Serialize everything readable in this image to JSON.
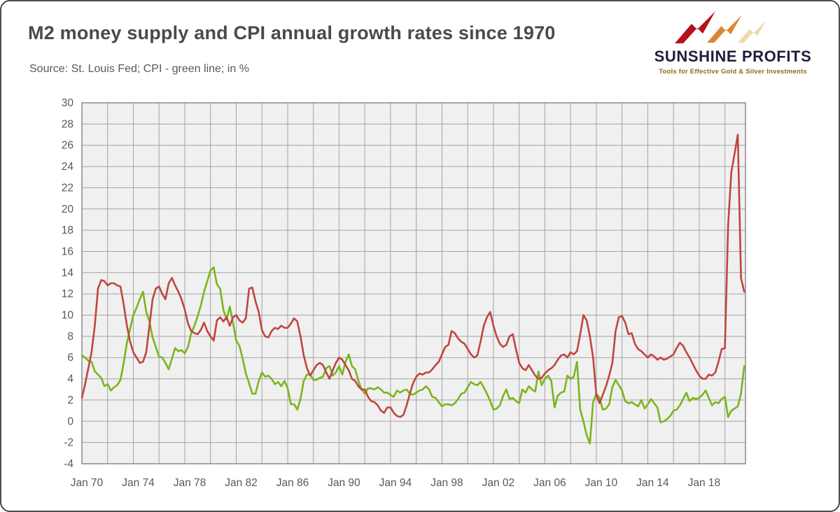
{
  "header": {
    "title": "M2 money supply and CPI annual growth rates since 1970",
    "source_note": "Source: St. Louis Fed; CPI - green line; in %"
  },
  "logo": {
    "brand": "SUNSHINE PROFITS",
    "tagline": "Tools for Effective Gold & Silver Investments"
  },
  "chart_data": {
    "type": "line",
    "title": "M2 money supply and CPI annual growth rates since 1970",
    "subtitle": "Source: St. Louis Fed; CPI - green line; in %",
    "xlabel": "",
    "ylabel": "",
    "unit": "%",
    "x_start": 1970,
    "x_step_years": 0.25,
    "xlim": [
      1970,
      2021.6
    ],
    "ylim": [
      -4,
      30
    ],
    "grid": {
      "on": true,
      "x_interval_years": 2,
      "y_interval": 2
    },
    "legend_position": "none (identified in subtitle: CPI - green line)",
    "y_ticks": [
      30,
      28,
      26,
      24,
      22,
      20,
      18,
      16,
      14,
      12,
      10,
      8,
      6,
      4,
      2,
      0,
      -2,
      -4
    ],
    "x_ticks": [
      {
        "label": "Jan 70",
        "year": 1970
      },
      {
        "label": "Jan 74",
        "year": 1974
      },
      {
        "label": "Jan 78",
        "year": 1978
      },
      {
        "label": "Jan 82",
        "year": 1982
      },
      {
        "label": "Jan 86",
        "year": 1986
      },
      {
        "label": "Jan 90",
        "year": 1990
      },
      {
        "label": "Jan 94",
        "year": 1994
      },
      {
        "label": "Jan 98",
        "year": 1998
      },
      {
        "label": "Jan 02",
        "year": 2002
      },
      {
        "label": "Jan 06",
        "year": 2006
      },
      {
        "label": "Jan 10",
        "year": 2010
      },
      {
        "label": "Jan 14",
        "year": 2014
      },
      {
        "label": "Jan 18",
        "year": 2018
      }
    ],
    "series": [
      {
        "id": "m2",
        "name": "M2 money supply annual growth rate",
        "color": "#c0453e",
        "values": [
          2.2,
          3.5,
          5.0,
          6.5,
          9.0,
          12.5,
          13.3,
          13.2,
          12.8,
          13.0,
          13.0,
          12.8,
          12.7,
          11.0,
          9.0,
          7.5,
          6.5,
          6.0,
          5.5,
          5.6,
          6.5,
          9.0,
          11.5,
          12.5,
          12.7,
          12.0,
          11.5,
          13.0,
          13.5,
          12.8,
          12.2,
          11.5,
          10.5,
          9.2,
          8.5,
          8.3,
          8.2,
          8.6,
          9.3,
          8.5,
          8.0,
          7.6,
          9.5,
          9.8,
          9.4,
          9.8,
          9.0,
          9.8,
          10.0,
          9.5,
          9.3,
          9.7,
          12.5,
          12.6,
          11.3,
          10.3,
          8.6,
          8.0,
          7.9,
          8.5,
          8.8,
          8.7,
          9.0,
          8.8,
          8.8,
          9.2,
          9.7,
          9.4,
          8.0,
          6.2,
          5.0,
          4.3,
          4.8,
          5.3,
          5.5,
          5.3,
          4.6,
          4.0,
          4.8,
          5.5,
          6.0,
          5.8,
          5.3,
          4.8,
          4.0,
          3.8,
          3.3,
          3.0,
          3.0,
          2.3,
          1.9,
          1.8,
          1.5,
          1.0,
          0.8,
          1.3,
          1.3,
          0.8,
          0.5,
          0.4,
          0.6,
          1.5,
          2.6,
          3.6,
          4.2,
          4.5,
          4.4,
          4.6,
          4.6,
          4.9,
          5.3,
          5.6,
          6.3,
          7.0,
          7.2,
          8.5,
          8.3,
          7.8,
          7.5,
          7.3,
          6.8,
          6.3,
          6.0,
          6.2,
          7.5,
          9.0,
          9.8,
          10.3,
          9.0,
          8.0,
          7.3,
          7.0,
          7.2,
          8.0,
          8.2,
          6.8,
          5.5,
          5.0,
          4.8,
          5.3,
          4.8,
          4.3,
          4.0,
          4.1,
          4.5,
          4.8,
          5.0,
          5.3,
          5.8,
          6.2,
          6.3,
          6.0,
          6.5,
          6.3,
          6.6,
          8.2,
          10.0,
          9.5,
          8.0,
          6.0,
          2.5,
          1.7,
          2.5,
          3.3,
          4.3,
          5.5,
          8.5,
          9.8,
          9.9,
          9.3,
          8.2,
          8.3,
          7.3,
          6.8,
          6.6,
          6.3,
          6.0,
          6.3,
          6.1,
          5.8,
          6.0,
          5.8,
          5.9,
          6.1,
          6.3,
          6.9,
          7.4,
          7.1,
          6.5,
          6.0,
          5.4,
          4.8,
          4.3,
          4.0,
          4.0,
          4.4,
          4.3,
          4.6,
          5.6,
          6.8,
          6.9,
          18.5,
          23.5,
          25.2,
          27.0,
          13.5,
          12.2
        ]
      },
      {
        "id": "cpi",
        "name": "CPI annual growth rate",
        "color": "#7ab51d",
        "values": [
          6.2,
          6.0,
          5.7,
          5.6,
          4.7,
          4.4,
          4.1,
          3.3,
          3.5,
          2.9,
          3.2,
          3.4,
          3.9,
          5.5,
          7.4,
          8.7,
          10.0,
          10.7,
          11.5,
          12.2,
          10.3,
          9.4,
          7.9,
          7.0,
          6.1,
          6.0,
          5.5,
          4.9,
          5.9,
          6.9,
          6.6,
          6.7,
          6.4,
          7.0,
          8.3,
          9.0,
          9.9,
          10.9,
          12.2,
          13.2,
          14.2,
          14.5,
          12.9,
          12.5,
          10.5,
          9.6,
          10.8,
          9.3,
          7.6,
          7.1,
          5.9,
          4.5,
          3.6,
          2.6,
          2.6,
          3.8,
          4.6,
          4.2,
          4.3,
          4.0,
          3.5,
          3.7,
          3.3,
          3.8,
          3.1,
          1.6,
          1.6,
          1.1,
          2.1,
          3.8,
          4.4,
          4.4,
          3.9,
          3.9,
          4.1,
          4.2,
          5.0,
          5.2,
          4.3,
          4.6,
          5.2,
          4.4,
          5.6,
          6.3,
          5.2,
          4.9,
          3.8,
          3.0,
          2.6,
          3.1,
          3.1,
          3.0,
          3.2,
          3.0,
          2.7,
          2.7,
          2.5,
          2.3,
          2.9,
          2.7,
          2.9,
          3.0,
          2.6,
          2.5,
          2.7,
          2.9,
          3.0,
          3.3,
          3.0,
          2.3,
          2.2,
          1.8,
          1.4,
          1.6,
          1.6,
          1.5,
          1.7,
          2.1,
          2.6,
          2.7,
          3.2,
          3.7,
          3.5,
          3.4,
          3.7,
          3.2,
          2.6,
          1.9,
          1.1,
          1.2,
          1.5,
          2.4,
          3.0,
          2.1,
          2.2,
          1.9,
          1.7,
          3.0,
          2.7,
          3.3,
          3.0,
          2.8,
          4.7,
          3.4,
          4.0,
          4.3,
          3.8,
          1.3,
          2.4,
          2.7,
          2.8,
          4.3,
          4.0,
          4.2,
          5.6,
          1.1,
          0.0,
          -1.3,
          -2.1,
          1.8,
          2.6,
          2.2,
          1.1,
          1.2,
          1.6,
          3.2,
          3.9,
          3.4,
          2.9,
          1.9,
          1.7,
          1.8,
          1.6,
          1.4,
          2.0,
          1.2,
          1.6,
          2.1,
          1.7,
          1.3,
          -0.1,
          0.0,
          0.2,
          0.5,
          1.0,
          1.1,
          1.5,
          2.1,
          2.7,
          1.9,
          2.2,
          2.1,
          2.2,
          2.5,
          2.9,
          2.2,
          1.5,
          1.8,
          1.7,
          2.1,
          2.3,
          0.4,
          1.0,
          1.2,
          1.4,
          2.6,
          5.2
        ]
      }
    ]
  }
}
